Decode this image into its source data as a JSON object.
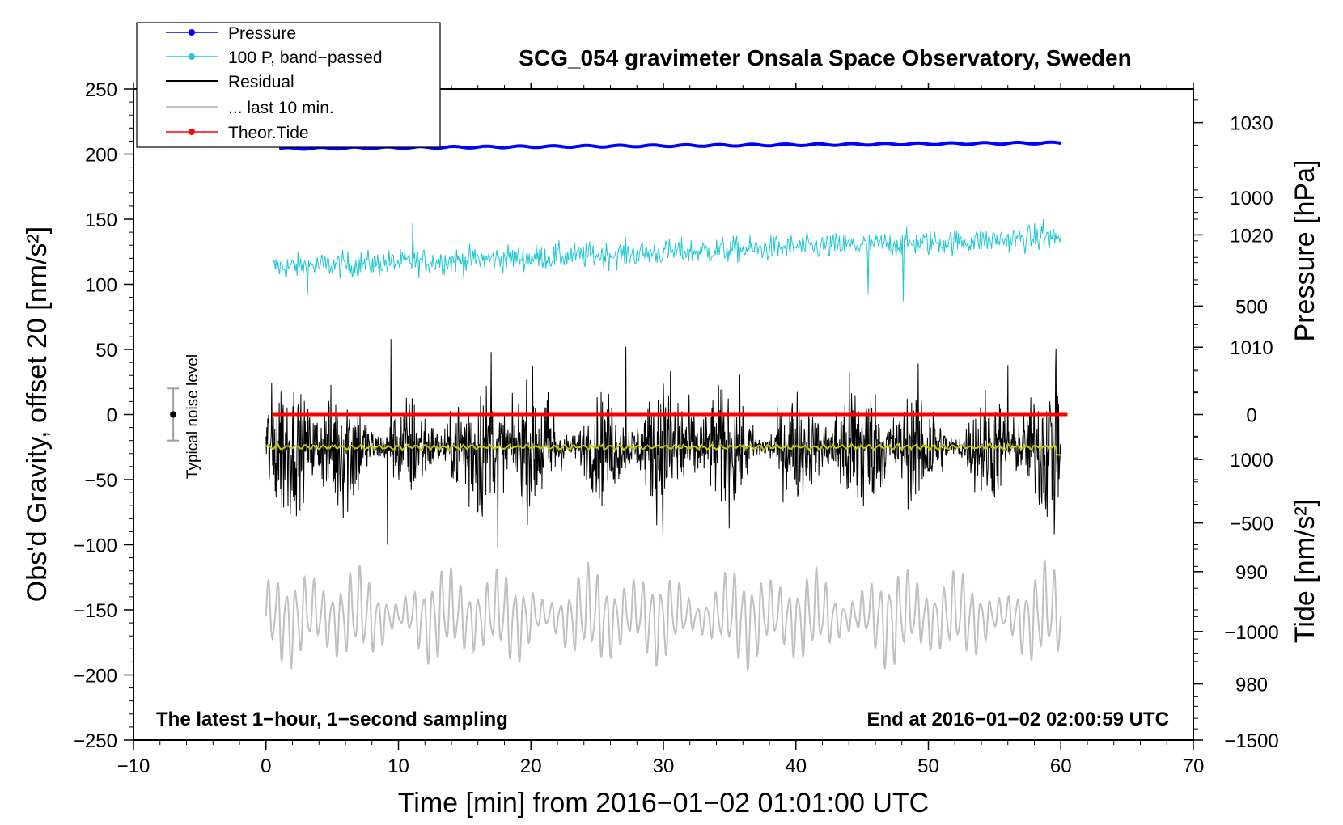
{
  "chart_data": {
    "type": "line",
    "title": "SCG_054 gravimeter Onsala Space Observatory, Sweden",
    "xlabel": "Time [min] from 2016−01−02 01:01:00 UTC",
    "ylabel_left": "Obs'd Gravity, offset 20 [nm/s²]",
    "ylabel_pressure": "Pressure [hPa]",
    "ylabel_tide": "Tide [nm/s²]",
    "xlim": [
      -10,
      70
    ],
    "ylim": [
      -250,
      250
    ],
    "pressure_lim": [
      975,
      1033
    ],
    "tide_lim": [
      -1500,
      1500
    ],
    "x_ticks": [
      "−10",
      "0",
      "10",
      "20",
      "30",
      "40",
      "50",
      "60",
      "70"
    ],
    "x_tick_values": [
      -10,
      0,
      10,
      20,
      30,
      40,
      50,
      60,
      70
    ],
    "y_ticks": [
      "250",
      "200",
      "150",
      "100",
      "50",
      "0",
      "−50",
      "−100",
      "−150",
      "−200",
      "−250"
    ],
    "y_tick_values": [
      250,
      200,
      150,
      100,
      50,
      0,
      -50,
      -100,
      -150,
      -200,
      -250
    ],
    "pressure_ticks": [
      "1030",
      "1020",
      "1010",
      "1000",
      "990",
      "980"
    ],
    "pressure_tick_values": [
      1030,
      1020,
      1010,
      1000,
      990,
      980
    ],
    "tide_ticks": [
      "1000",
      "500",
      "0",
      "−500",
      "−1000",
      "−1500"
    ],
    "tide_tick_values": [
      1000,
      500,
      0,
      -500,
      -1000,
      -1500
    ],
    "legend": [
      {
        "label": "Pressure",
        "color": "#0000ff",
        "marker": true
      },
      {
        "label": "100 P, band−passed",
        "color": "#20c8d0",
        "marker": true
      },
      {
        "label": "Residual",
        "color": "#000000",
        "marker": false
      },
      {
        "label": "... last 10 min.",
        "color": "#c0c0c0",
        "marker": false
      },
      {
        "label": "Theor.Tide",
        "color": "#ff0000",
        "marker": true
      }
    ],
    "annotations": {
      "left_note": "The latest 1−hour, 1−second sampling",
      "right_note": "End at 2016−01−02 02:00:59 UTC",
      "noise_label": "Typical noise level"
    },
    "noise_bar": {
      "x": -7,
      "center": 0,
      "low": -20,
      "high": 20
    },
    "series": [
      {
        "name": "Pressure",
        "axis": "pressure",
        "color": "#0000ff",
        "x_range": [
          1,
          60
        ],
        "start": 1027.7,
        "end": 1028.2,
        "noise": 0.15
      },
      {
        "name": "100 P, band−passed",
        "axis": "left",
        "color": "#20c8d0",
        "x_range": [
          0.5,
          60
        ],
        "baseline_start": 113,
        "baseline_end": 136,
        "amplitude": 9,
        "extremes_min": 87,
        "extremes_max": 150
      },
      {
        "name": "Residual",
        "axis": "left",
        "color": "#000000",
        "x_range": [
          0,
          60
        ],
        "baseline": -25,
        "amplitude": 24,
        "extremes_min": -103,
        "extremes_max": 58
      },
      {
        "name": "Residual smoothed",
        "axis": "left",
        "color": "#c8c800",
        "x_range": [
          0,
          60
        ],
        "baseline": -25
      },
      {
        "name": "... last 10 min.",
        "axis": "left",
        "color": "#c0c0c0",
        "x_range": [
          0,
          60
        ],
        "baseline": -155,
        "amplitude": 30,
        "extremes_min": -222,
        "extremes_max": -95
      },
      {
        "name": "Theor.Tide",
        "axis": "tide",
        "color": "#ff0000",
        "x_range": [
          0.5,
          60.5
        ],
        "value": 0
      }
    ]
  }
}
